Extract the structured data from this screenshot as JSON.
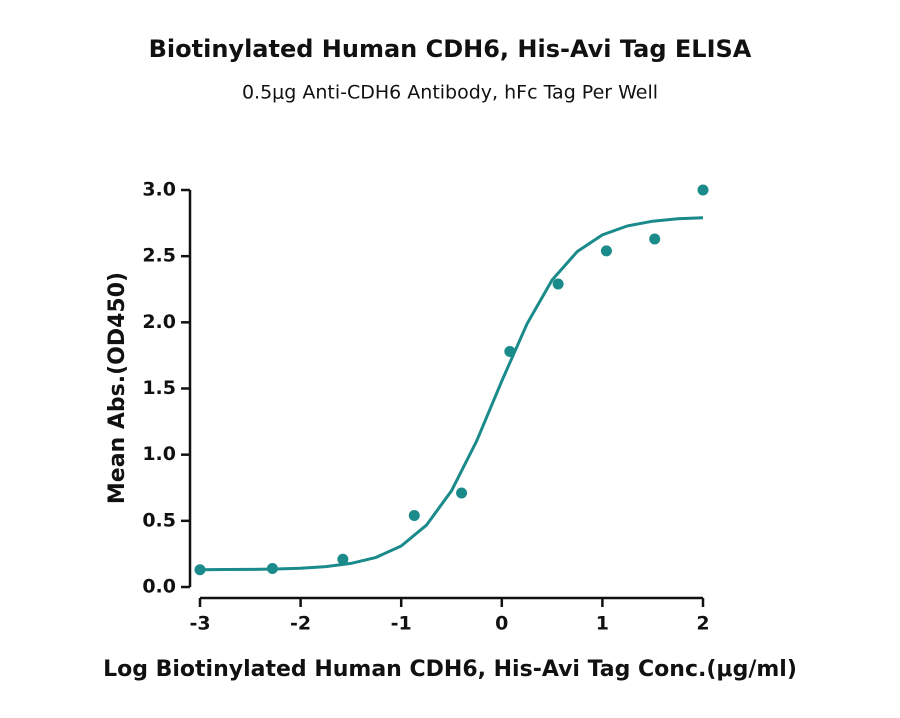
{
  "chart_data": {
    "type": "scatter",
    "title": "Biotinylated Human CDH6, His-Avi Tag ELISA",
    "subtitle": "0.5μg Anti-CDH6 Antibody, hFc Tag Per Well",
    "x_label": "Log Biotinylated Human CDH6, His-Avi Tag Conc.(μg/ml)",
    "y_label": "Mean Abs.(OD450)",
    "color": "#1a8a8a",
    "points": {
      "x": [
        -3,
        -2.28,
        -1.58,
        -0.87,
        -0.4,
        0.08,
        0.56,
        1.04,
        1.52,
        2.0
      ],
      "y": [
        0.13,
        0.14,
        0.21,
        0.54,
        0.71,
        1.78,
        2.29,
        2.54,
        2.63,
        3.0
      ]
    },
    "fit": {
      "x": [
        -3,
        -2.75,
        -2.5,
        -2.25,
        -2,
        -1.75,
        -1.5,
        -1.25,
        -1,
        -0.75,
        -0.5,
        -0.25,
        0,
        0.25,
        0.5,
        0.75,
        1,
        1.25,
        1.5,
        1.75,
        2
      ],
      "y": [
        0.131,
        0.132,
        0.133,
        0.136,
        0.142,
        0.154,
        0.178,
        0.224,
        0.31,
        0.467,
        0.727,
        1.104,
        1.557,
        1.988,
        2.32,
        2.535,
        2.661,
        2.729,
        2.764,
        2.782,
        2.791
      ]
    },
    "xlim": [
      -3,
      2
    ],
    "xticks": [
      -3,
      -2,
      -1,
      0,
      1,
      2
    ],
    "ylim": [
      0,
      3
    ],
    "yticks": [
      {
        "value": 0,
        "label": "0.0"
      },
      0.5,
      {
        "value": 1,
        "label": "1.0"
      },
      1.5,
      {
        "value": 2,
        "label": "2.0"
      },
      2.5,
      {
        "value": 3,
        "label": "3.0"
      }
    ]
  }
}
